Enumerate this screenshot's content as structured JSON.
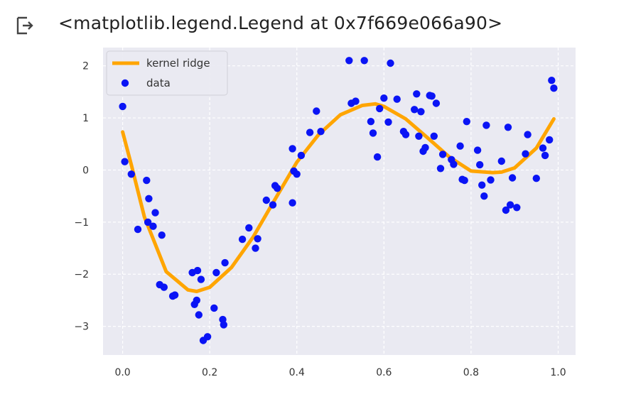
{
  "output": {
    "text": "<matplotlib.legend.Legend at 0x7f669e066a90>",
    "icon": "output-arrow-icon"
  },
  "chart_data": {
    "type": "scatter",
    "grid": true,
    "legend_position": "top-left",
    "xlim": [
      -0.045,
      1.04
    ],
    "ylim": [
      -3.55,
      2.35
    ],
    "xticks": [
      0.0,
      0.2,
      0.4,
      0.6,
      0.8,
      1.0
    ],
    "xtick_labels": [
      "0.0",
      "0.2",
      "0.4",
      "0.6",
      "0.8",
      "1.0"
    ],
    "yticks": [
      2,
      1,
      0,
      -1,
      -2,
      -3
    ],
    "ytick_labels": [
      "2",
      "1",
      "0",
      "−1",
      "−2",
      "−3"
    ],
    "series": [
      {
        "name": "kernel ridge",
        "kind": "line",
        "color": "#ffa500",
        "x": [
          0.0,
          0.02,
          0.05,
          0.1,
          0.15,
          0.17,
          0.2,
          0.25,
          0.3,
          0.35,
          0.4,
          0.45,
          0.5,
          0.55,
          0.58,
          0.6,
          0.65,
          0.7,
          0.75,
          0.8,
          0.85,
          0.87,
          0.9,
          0.95,
          0.99
        ],
        "y": [
          0.73,
          0.1,
          -0.9,
          -1.95,
          -2.3,
          -2.33,
          -2.25,
          -1.87,
          -1.28,
          -0.56,
          0.15,
          0.68,
          1.06,
          1.24,
          1.27,
          1.22,
          0.98,
          0.62,
          0.25,
          -0.02,
          -0.05,
          -0.04,
          0.04,
          0.42,
          0.98
        ]
      },
      {
        "name": "data",
        "kind": "scatter",
        "color": "#0a14f5",
        "x": [
          0.0,
          0.005,
          0.02,
          0.035,
          0.055,
          0.058,
          0.06,
          0.07,
          0.075,
          0.085,
          0.09,
          0.095,
          0.115,
          0.12,
          0.16,
          0.165,
          0.17,
          0.172,
          0.175,
          0.18,
          0.185,
          0.195,
          0.21,
          0.215,
          0.23,
          0.232,
          0.235,
          0.275,
          0.29,
          0.305,
          0.31,
          0.33,
          0.345,
          0.35,
          0.355,
          0.39,
          0.39,
          0.393,
          0.4,
          0.41,
          0.43,
          0.445,
          0.455,
          0.52,
          0.525,
          0.535,
          0.555,
          0.57,
          0.575,
          0.585,
          0.59,
          0.6,
          0.61,
          0.615,
          0.63,
          0.645,
          0.65,
          0.67,
          0.675,
          0.68,
          0.685,
          0.69,
          0.695,
          0.705,
          0.71,
          0.715,
          0.72,
          0.73,
          0.735,
          0.755,
          0.76,
          0.775,
          0.78,
          0.785,
          0.79,
          0.815,
          0.82,
          0.825,
          0.83,
          0.835,
          0.845,
          0.87,
          0.88,
          0.885,
          0.89,
          0.895,
          0.905,
          0.925,
          0.93,
          0.95,
          0.965,
          0.97,
          0.98,
          0.985,
          0.99
        ],
        "y": [
          1.22,
          0.16,
          -0.08,
          -1.14,
          -0.2,
          -1.0,
          -0.55,
          -1.08,
          -0.82,
          -2.2,
          -1.25,
          -2.25,
          -2.42,
          -2.4,
          -1.97,
          -2.58,
          -2.5,
          -1.93,
          -2.78,
          -2.1,
          -3.27,
          -3.2,
          -2.65,
          -1.97,
          -2.87,
          -2.97,
          -1.78,
          -1.33,
          -1.11,
          -1.5,
          -1.32,
          -0.58,
          -0.67,
          -0.3,
          -0.35,
          0.41,
          -0.63,
          -0.02,
          -0.08,
          0.28,
          0.72,
          1.13,
          0.74,
          2.1,
          1.28,
          1.32,
          2.1,
          0.93,
          0.71,
          0.25,
          1.18,
          1.38,
          0.92,
          2.05,
          1.36,
          0.74,
          0.68,
          1.16,
          1.46,
          0.65,
          1.12,
          0.36,
          0.43,
          1.43,
          1.42,
          0.65,
          1.28,
          0.03,
          0.3,
          0.2,
          0.11,
          0.46,
          -0.18,
          -0.2,
          0.93,
          0.38,
          0.1,
          -0.29,
          -0.5,
          0.86,
          -0.19,
          0.17,
          -0.77,
          0.82,
          -0.67,
          -0.15,
          -0.72,
          0.31,
          0.68,
          -0.16,
          0.42,
          0.28,
          0.58,
          1.72,
          1.57
        ]
      }
    ]
  }
}
